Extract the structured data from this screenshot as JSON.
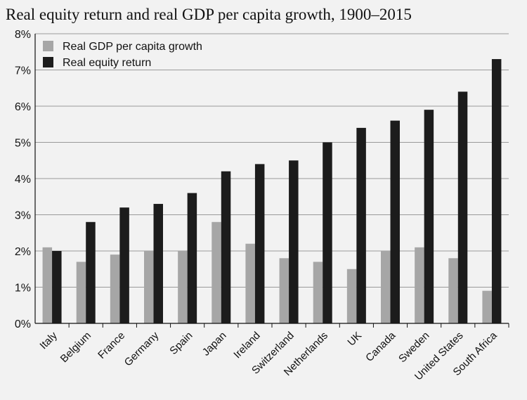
{
  "chart_data": {
    "type": "bar",
    "title": "Real equity return and real GDP per capita growth, 1900–2015",
    "xlabel": "",
    "ylabel": "",
    "ylim": [
      0,
      8
    ],
    "y_ticks": [
      "0%",
      "1%",
      "2%",
      "3%",
      "4%",
      "5%",
      "6%",
      "7%",
      "8%"
    ],
    "grid": true,
    "legend_position": "top-left",
    "categories": [
      "Italy",
      "Belgium",
      "France",
      "Germany",
      "Spain",
      "Japan",
      "Ireland",
      "Switzerland",
      "Netherlands",
      "UK",
      "Canada",
      "Sweden",
      "United States",
      "South Africa"
    ],
    "series": [
      {
        "name": "Real GDP per capita growth",
        "color": "#a6a6a6",
        "values": [
          2.1,
          1.7,
          1.9,
          2.0,
          2.0,
          2.8,
          2.2,
          1.8,
          1.7,
          1.5,
          2.0,
          2.1,
          1.8,
          0.9
        ]
      },
      {
        "name": "Real equity return",
        "color": "#1c1c1c",
        "values": [
          2.0,
          2.8,
          3.2,
          3.3,
          3.6,
          4.2,
          4.4,
          4.5,
          5.0,
          5.4,
          5.6,
          5.9,
          6.4,
          7.3
        ]
      }
    ]
  }
}
